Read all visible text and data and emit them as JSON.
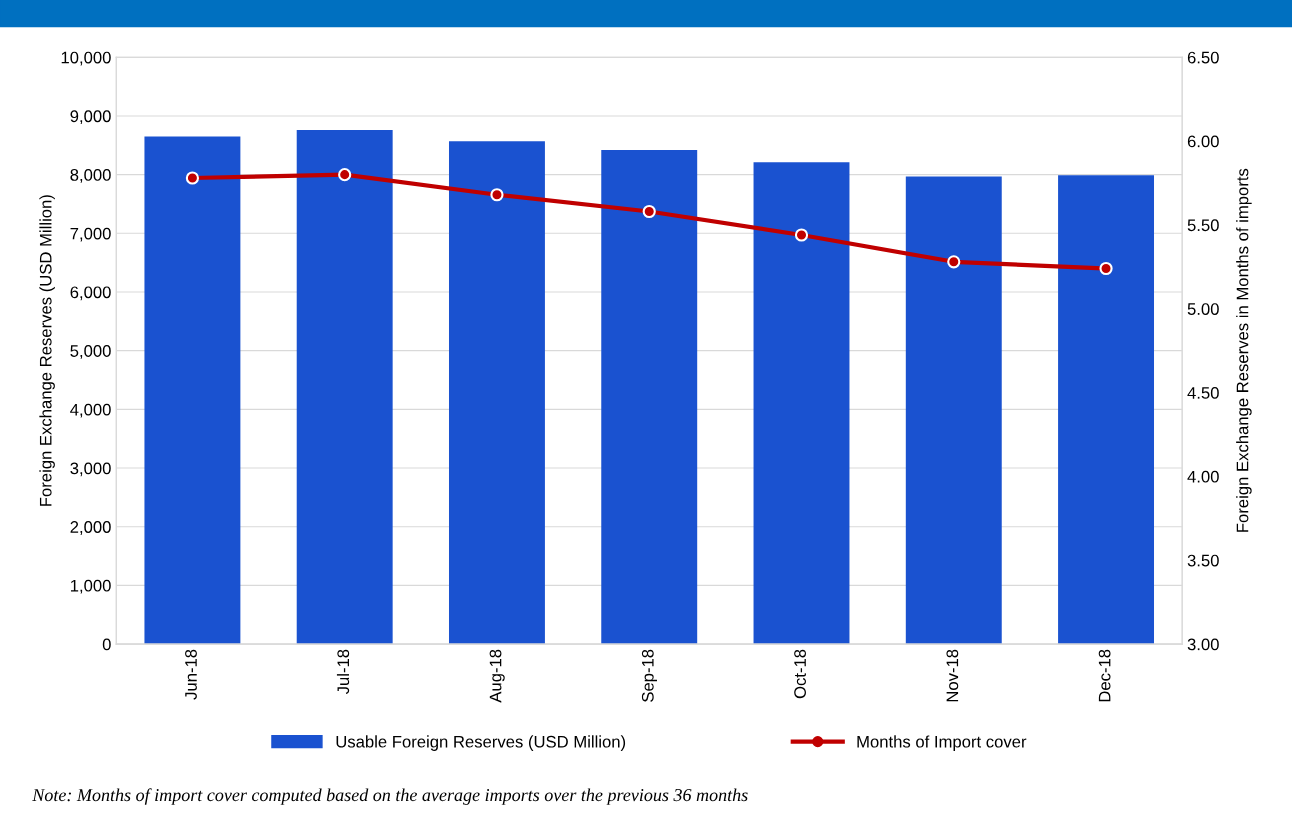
{
  "chart_data": {
    "type": "bar",
    "categories": [
      "Jun-18",
      "Jul-18",
      "Aug-18",
      "Sep-18",
      "Oct-18",
      "Nov-18",
      "Dec-18"
    ],
    "series": [
      {
        "name": "Usable Foreign Reserves (USD Million)",
        "color": "#1a52d0",
        "values": [
          8650,
          8760,
          8570,
          8420,
          8210,
          7970,
          7990
        ]
      },
      {
        "name": "Months of Import cover",
        "type": "line",
        "axis": "y2",
        "color": "#c00000",
        "marker": "circle",
        "values": [
          5.78,
          5.8,
          5.68,
          5.58,
          5.44,
          5.28,
          5.24
        ]
      }
    ],
    "ylabel": "Foreign Exchange Reserves (USD Million)",
    "y2label": "Foreign Exchange Reserves in Months of imports",
    "ylim": [
      0,
      10000
    ],
    "yticks": [
      {
        "value": 0,
        "label": "0"
      },
      {
        "value": 1000,
        "label": "1,000"
      },
      {
        "value": 2000,
        "label": "2,000"
      },
      {
        "value": 3000,
        "label": "3,000"
      },
      {
        "value": 4000,
        "label": "4,000"
      },
      {
        "value": 5000,
        "label": "5,000"
      },
      {
        "value": 6000,
        "label": "6,000"
      },
      {
        "value": 7000,
        "label": "7,000"
      },
      {
        "value": 8000,
        "label": "8,000"
      },
      {
        "value": 9000,
        "label": "9,000"
      },
      {
        "value": 10000,
        "label": "10,000"
      }
    ],
    "y2lim": [
      3.0,
      6.5
    ],
    "y2ticks": [
      {
        "value": 3.0,
        "label": "3.00"
      },
      {
        "value": 3.5,
        "label": "3.50"
      },
      {
        "value": 4.0,
        "label": "4.00"
      },
      {
        "value": 4.5,
        "label": "4.50"
      },
      {
        "value": 5.0,
        "label": "5.00"
      },
      {
        "value": 5.5,
        "label": "5.50"
      },
      {
        "value": 6.0,
        "label": "6.00"
      },
      {
        "value": 6.5,
        "label": "6.50"
      }
    ],
    "grid": "y",
    "legend": "bottom",
    "annotations": [
      "Note: Months of import cover computed based on the average imports over the previous 36 months"
    ]
  }
}
